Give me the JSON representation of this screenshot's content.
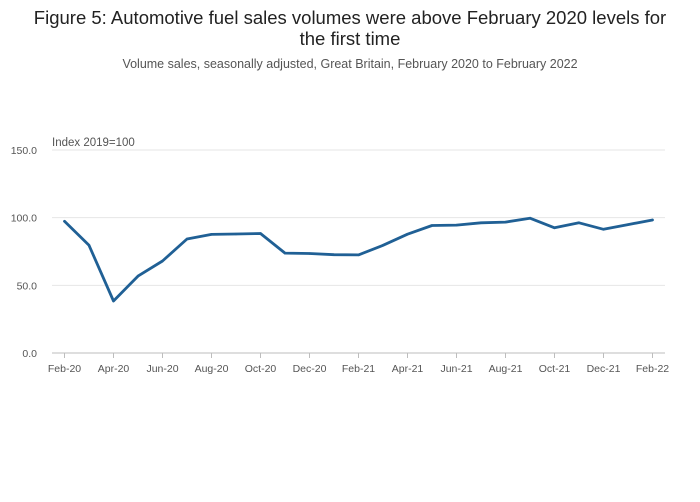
{
  "chart_data": {
    "type": "line",
    "title": "Figure 5: Automotive fuel sales volumes were above February 2020 levels for the first time",
    "subtitle": "Volume sales, seasonally adjusted, Great Britain, February 2020 to February 2022",
    "ylabel": "Index 2019=100",
    "xlabel": "",
    "ylim": [
      0,
      150
    ],
    "yticks": [
      "0.0",
      "50.0",
      "100.0",
      "150.0"
    ],
    "ytick_values": [
      0,
      50,
      100,
      150
    ],
    "xtick_labels": [
      "Feb-20",
      "Apr-20",
      "Jun-20",
      "Aug-20",
      "Oct-20",
      "Dec-20",
      "Feb-21",
      "Apr-21",
      "Jun-21",
      "Aug-21",
      "Oct-21",
      "Dec-21",
      "Feb-22"
    ],
    "categories": [
      "Feb-20",
      "Mar-20",
      "Apr-20",
      "May-20",
      "Jun-20",
      "Jul-20",
      "Aug-20",
      "Sep-20",
      "Oct-20",
      "Nov-20",
      "Dec-20",
      "Jan-21",
      "Feb-21",
      "Mar-21",
      "Apr-21",
      "May-21",
      "Jun-21",
      "Jul-21",
      "Aug-21",
      "Sep-21",
      "Oct-21",
      "Nov-21",
      "Dec-21",
      "Jan-22",
      "Feb-22"
    ],
    "series": [
      {
        "name": "Automotive fuel",
        "color": "#206095",
        "values": [
          97.3,
          79.6,
          38.4,
          56.8,
          68.0,
          84.2,
          87.6,
          87.9,
          88.3,
          73.8,
          73.5,
          72.6,
          72.5,
          79.6,
          87.8,
          94.2,
          94.5,
          96.2,
          96.7,
          99.6,
          92.5,
          96.2,
          91.4,
          94.9,
          98.3
        ]
      }
    ],
    "grid": true
  }
}
